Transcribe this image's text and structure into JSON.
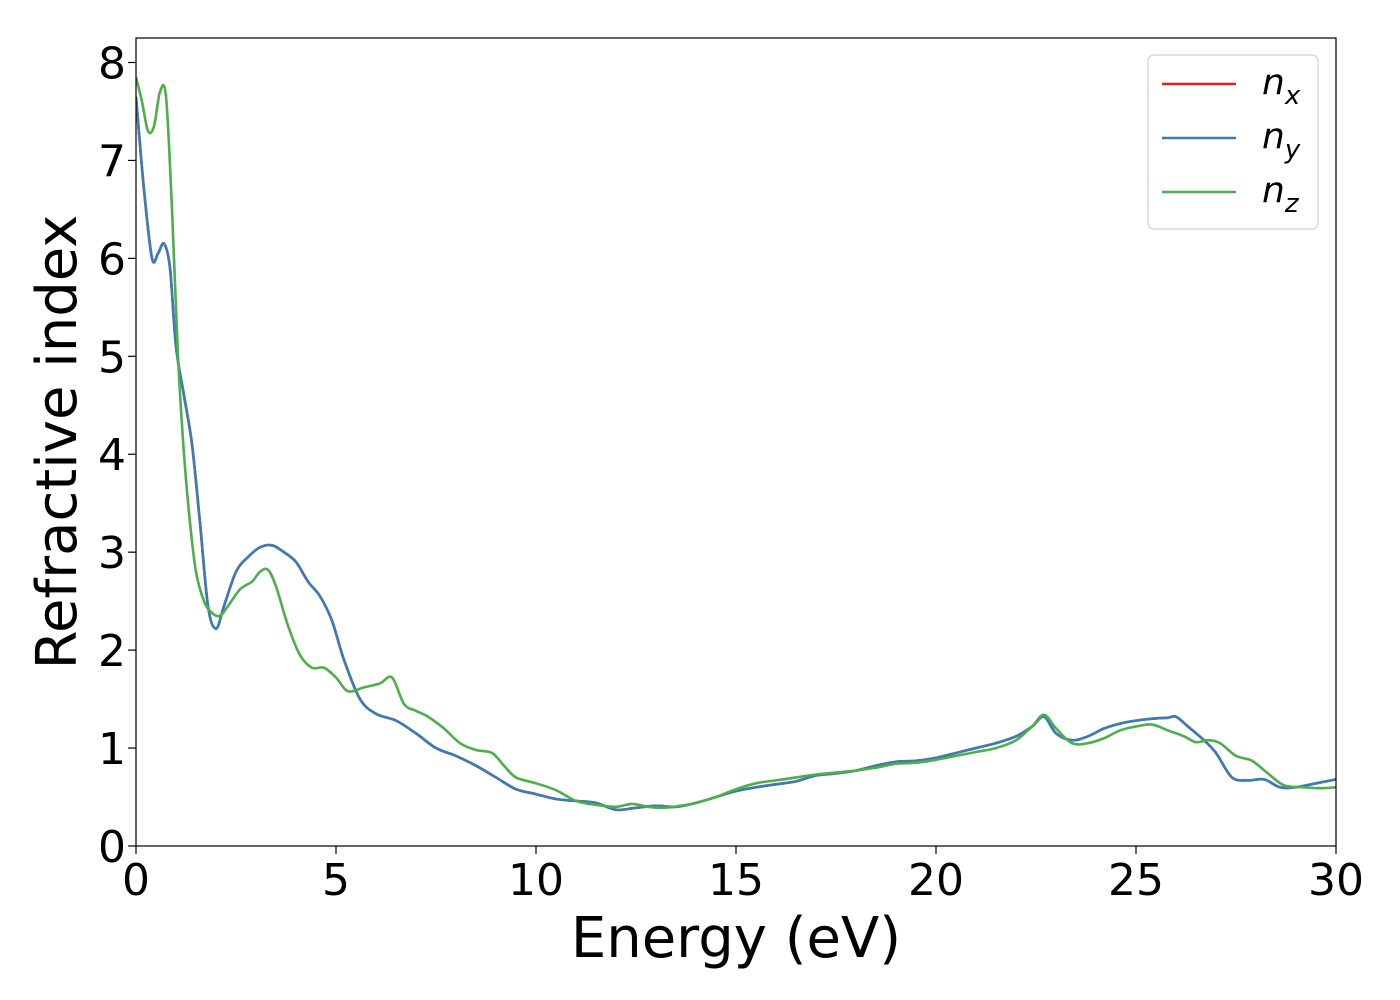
{
  "chart_data": {
    "type": "line",
    "title": "",
    "xlabel": "Energy (eV)",
    "ylabel": "Refractive index",
    "xlim": [
      0,
      30
    ],
    "ylim": [
      0,
      8.25
    ],
    "xticks": [
      "0",
      "5",
      "10",
      "15",
      "20",
      "25",
      "30"
    ],
    "yticks": [
      "0",
      "1",
      "2",
      "3",
      "4",
      "5",
      "6",
      "7",
      "8"
    ],
    "grid": false,
    "legend_position": "top-right",
    "series": [
      {
        "name_base": "n",
        "name_sub": "x",
        "color": "#e41a1c",
        "x": [
          0,
          0.2,
          0.4,
          0.55,
          0.7,
          0.85,
          1.0,
          1.2,
          1.4,
          1.6,
          1.8,
          2.0,
          2.2,
          2.5,
          2.8,
          3.1,
          3.4,
          3.7,
          4.0,
          4.3,
          4.6,
          4.9,
          5.2,
          5.6,
          6.0,
          6.5,
          7.0,
          7.5,
          8.0,
          8.5,
          9.0,
          9.5,
          10.0,
          10.5,
          11.0,
          11.5,
          12.0,
          12.5,
          13.0,
          13.5,
          14.0,
          14.5,
          15.0,
          15.5,
          16.0,
          16.5,
          17.0,
          17.5,
          18.0,
          18.5,
          19.0,
          19.5,
          20.0,
          20.5,
          21.0,
          21.5,
          22.0,
          22.4,
          22.7,
          23.0,
          23.4,
          23.8,
          24.2,
          24.6,
          25.0,
          25.4,
          25.8,
          26.0,
          26.3,
          26.7,
          27.0,
          27.4,
          27.8,
          28.2,
          28.6,
          29.0,
          29.5,
          30.0
        ],
        "y": [
          7.65,
          6.7,
          6.0,
          6.05,
          6.15,
          5.9,
          5.1,
          4.6,
          4.1,
          3.3,
          2.45,
          2.22,
          2.45,
          2.8,
          2.95,
          3.05,
          3.07,
          3.0,
          2.9,
          2.7,
          2.55,
          2.3,
          1.9,
          1.5,
          1.35,
          1.28,
          1.15,
          1.0,
          0.92,
          0.82,
          0.7,
          0.58,
          0.53,
          0.48,
          0.46,
          0.44,
          0.37,
          0.39,
          0.41,
          0.4,
          0.44,
          0.5,
          0.56,
          0.6,
          0.63,
          0.66,
          0.72,
          0.74,
          0.77,
          0.82,
          0.86,
          0.87,
          0.9,
          0.95,
          1.0,
          1.05,
          1.12,
          1.22,
          1.32,
          1.15,
          1.08,
          1.12,
          1.2,
          1.25,
          1.28,
          1.3,
          1.31,
          1.32,
          1.22,
          1.08,
          0.95,
          0.7,
          0.67,
          0.68,
          0.6,
          0.6,
          0.64,
          0.68
        ]
      },
      {
        "name_base": "n",
        "name_sub": "y",
        "color": "#377eb8",
        "x": [
          0,
          0.2,
          0.4,
          0.55,
          0.7,
          0.85,
          1.0,
          1.2,
          1.4,
          1.6,
          1.8,
          2.0,
          2.2,
          2.5,
          2.8,
          3.1,
          3.4,
          3.7,
          4.0,
          4.3,
          4.6,
          4.9,
          5.2,
          5.6,
          6.0,
          6.5,
          7.0,
          7.5,
          8.0,
          8.5,
          9.0,
          9.5,
          10.0,
          10.5,
          11.0,
          11.5,
          12.0,
          12.5,
          13.0,
          13.5,
          14.0,
          14.5,
          15.0,
          15.5,
          16.0,
          16.5,
          17.0,
          17.5,
          18.0,
          18.5,
          19.0,
          19.5,
          20.0,
          20.5,
          21.0,
          21.5,
          22.0,
          22.4,
          22.7,
          23.0,
          23.4,
          23.8,
          24.2,
          24.6,
          25.0,
          25.4,
          25.8,
          26.0,
          26.3,
          26.7,
          27.0,
          27.4,
          27.8,
          28.2,
          28.6,
          29.0,
          29.5,
          30.0
        ],
        "y": [
          7.65,
          6.7,
          6.0,
          6.05,
          6.15,
          5.9,
          5.1,
          4.6,
          4.1,
          3.3,
          2.45,
          2.22,
          2.45,
          2.8,
          2.95,
          3.05,
          3.07,
          3.0,
          2.9,
          2.7,
          2.55,
          2.3,
          1.9,
          1.5,
          1.35,
          1.28,
          1.15,
          1.0,
          0.92,
          0.82,
          0.7,
          0.58,
          0.53,
          0.48,
          0.46,
          0.44,
          0.37,
          0.39,
          0.41,
          0.4,
          0.44,
          0.5,
          0.56,
          0.6,
          0.63,
          0.66,
          0.72,
          0.74,
          0.77,
          0.82,
          0.86,
          0.87,
          0.9,
          0.95,
          1.0,
          1.05,
          1.12,
          1.22,
          1.32,
          1.15,
          1.08,
          1.12,
          1.2,
          1.25,
          1.28,
          1.3,
          1.31,
          1.32,
          1.22,
          1.08,
          0.95,
          0.7,
          0.67,
          0.68,
          0.6,
          0.6,
          0.64,
          0.68
        ]
      },
      {
        "name_base": "n",
        "name_sub": "z",
        "color": "#4daf4a",
        "x": [
          0,
          0.15,
          0.3,
          0.45,
          0.6,
          0.75,
          0.9,
          1.05,
          1.2,
          1.35,
          1.5,
          1.7,
          1.9,
          2.1,
          2.3,
          2.6,
          2.9,
          3.1,
          3.3,
          3.5,
          3.8,
          4.1,
          4.4,
          4.7,
          5.0,
          5.3,
          5.7,
          6.1,
          6.4,
          6.7,
          7.0,
          7.3,
          7.7,
          8.1,
          8.5,
          8.9,
          9.2,
          9.5,
          10.0,
          10.5,
          11.0,
          11.5,
          12.0,
          12.4,
          12.8,
          13.2,
          13.6,
          14.0,
          14.5,
          15.0,
          15.5,
          16.0,
          16.5,
          17.0,
          17.5,
          18.0,
          18.5,
          19.0,
          19.5,
          20.0,
          20.5,
          21.0,
          21.5,
          22.0,
          22.4,
          22.7,
          23.0,
          23.4,
          23.8,
          24.2,
          24.6,
          25.0,
          25.4,
          25.8,
          26.2,
          26.5,
          26.8,
          27.1,
          27.5,
          27.9,
          28.3,
          28.7,
          29.2,
          29.6,
          30.0
        ],
        "y": [
          7.85,
          7.6,
          7.3,
          7.35,
          7.7,
          7.65,
          6.5,
          5.0,
          4.0,
          3.3,
          2.8,
          2.5,
          2.38,
          2.35,
          2.45,
          2.62,
          2.7,
          2.8,
          2.82,
          2.65,
          2.25,
          1.95,
          1.82,
          1.82,
          1.72,
          1.58,
          1.62,
          1.66,
          1.72,
          1.45,
          1.38,
          1.32,
          1.2,
          1.05,
          0.98,
          0.95,
          0.82,
          0.7,
          0.64,
          0.57,
          0.46,
          0.42,
          0.4,
          0.43,
          0.4,
          0.39,
          0.41,
          0.44,
          0.5,
          0.58,
          0.64,
          0.67,
          0.7,
          0.73,
          0.75,
          0.77,
          0.8,
          0.84,
          0.85,
          0.88,
          0.92,
          0.96,
          1.0,
          1.08,
          1.22,
          1.34,
          1.2,
          1.05,
          1.05,
          1.1,
          1.18,
          1.22,
          1.24,
          1.18,
          1.12,
          1.06,
          1.08,
          1.05,
          0.92,
          0.87,
          0.74,
          0.62,
          0.6,
          0.59,
          0.6
        ]
      }
    ]
  }
}
